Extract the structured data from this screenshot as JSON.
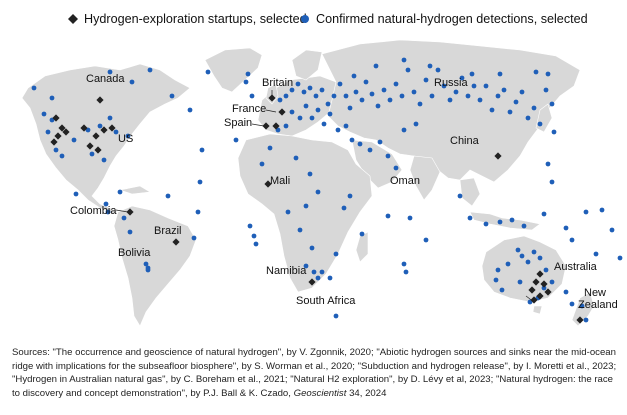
{
  "legend": {
    "startups_label": "Hydrogen-exploration startups, selected",
    "detections_label": "Confirmed natural-hydrogen detections, selected"
  },
  "colors": {
    "land": "#d8d8d8",
    "startup_marker": "#222222",
    "detection_marker": "#1f5fb8"
  },
  "map_labels": {
    "canada": "Canada",
    "us": "US",
    "britain": "Britain",
    "france": "France",
    "spain": "Spain",
    "russia": "Russia",
    "china": "China",
    "mali": "Mali",
    "oman": "Oman",
    "colombia": "Colombia",
    "brazil": "Brazil",
    "bolivia": "Bolivia",
    "namibia": "Namibia",
    "south_africa": "South Africa",
    "australia": "Australia",
    "new_zealand_1": "New",
    "new_zealand_2": "Zealand"
  },
  "sources": {
    "part1": "Sources: \"The occurrence and geoscience of natural hydrogen\", by V. Zgonnik, 2020; \"Abiotic hydrogen sources and sinks near the mid-ocean ridge with implications for the subseafloor biosphere\", by S. Worman et al., 2020; \"Subduction and hydrogen release\", by I. Moretti et al., 2023; \"Hydrogen in Australian natural gas\", by C. Boreham et al., 2021; \"Natural H2 exploration\", by D. Lévy et al, 2023; \"Natural hydrogen: the race to discovery and concept demonstration\", by P.J. Ball & K. Czado, ",
    "journal": "Geoscientist",
    "part2": " 34, 2024"
  }
}
